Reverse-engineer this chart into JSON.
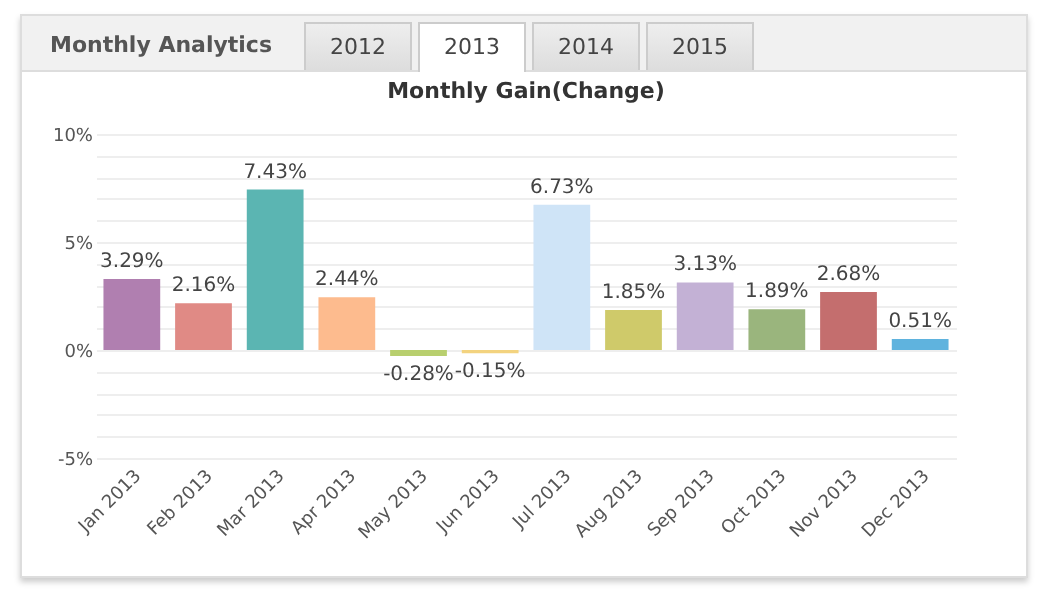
{
  "chart_data": {
    "type": "bar",
    "title": "Monthly Gain(Change)",
    "annotations": [
      "Monthly Analytics",
      "2012",
      "2013",
      "2014",
      "2015"
    ],
    "categories": [
      "Jan 2013",
      "Feb 2013",
      "Mar 2013",
      "Apr 2013",
      "May 2013",
      "Jun 2013",
      "Jul 2013",
      "Aug 2013",
      "Sep 2013",
      "Oct 2013",
      "Nov 2013",
      "Dec 2013"
    ],
    "values": [
      3.29,
      2.16,
      7.43,
      2.44,
      -0.28,
      -0.15,
      6.73,
      1.85,
      3.13,
      1.89,
      2.68,
      0.51
    ],
    "value_labels": [
      "3.29%",
      "2.16%",
      "7.43%",
      "2.44%",
      "-0.28%",
      "-0.15%",
      "6.73%",
      "1.85%",
      "3.13%",
      "1.89%",
      "2.68%",
      "0.51%"
    ],
    "colors": [
      "#b07fb0",
      "#e08a85",
      "#5bb5b2",
      "#fdbb8e",
      "#b8cf6e",
      "#f3d37f",
      "#cfe4f7",
      "#cfca6a",
      "#c3b1d5",
      "#9ab57d",
      "#c46e6e",
      "#5fb3de"
    ],
    "ylim": [
      -5,
      10
    ],
    "yticks": [
      {
        "value": -5,
        "label": "-5%"
      },
      {
        "value": -4,
        "label": null
      },
      {
        "value": -3,
        "label": null
      },
      {
        "value": -2,
        "label": null
      },
      {
        "value": -1,
        "label": null
      },
      {
        "value": 0,
        "label": "0%"
      },
      {
        "value": 1,
        "label": null
      },
      {
        "value": 2,
        "label": null
      },
      {
        "value": 3,
        "label": null
      },
      {
        "value": 4,
        "label": null
      },
      {
        "value": 5,
        "label": "5%"
      },
      {
        "value": 6,
        "label": null
      },
      {
        "value": 7,
        "label": null
      },
      {
        "value": 8,
        "label": null
      },
      {
        "value": 9,
        "label": null
      },
      {
        "value": 10,
        "label": "10%"
      }
    ],
    "grid": true
  }
}
